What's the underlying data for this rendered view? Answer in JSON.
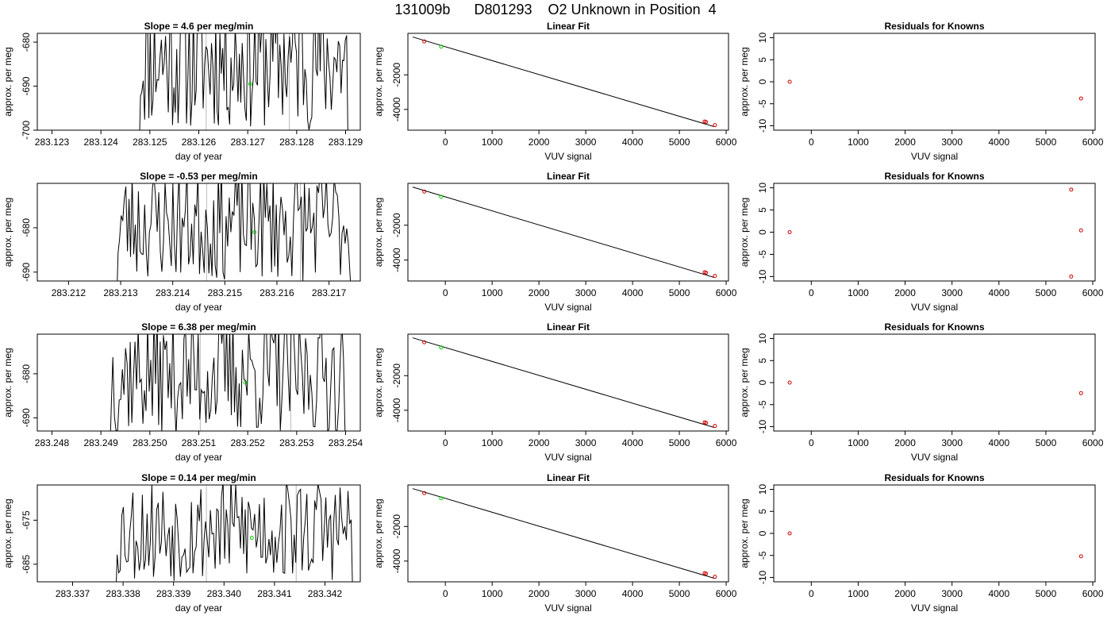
{
  "figure": {
    "title": "131009b      D801293    O2 Unknown in Position  4"
  },
  "styles": {
    "trace_color": "#000000",
    "marker_green": "#00cc00",
    "marker_red": "#cc0000",
    "divider_color": "#bbbbbb"
  },
  "chart_data": [
    {
      "type": "line",
      "row": 1,
      "col": 1,
      "title": "Slope =  4.6  per meg/min",
      "xlabel": "day of year",
      "ylabel": "approx. per meg",
      "xlim": [
        283.1227,
        283.1293
      ],
      "ylim": [
        -700,
        -678
      ],
      "xticks": [
        283.123,
        283.124,
        283.125,
        283.126,
        283.127,
        283.128,
        283.129
      ],
      "xtick_labels": [
        "283.123",
        "283.124",
        "283.125",
        "283.126",
        "283.127",
        "283.128",
        "283.129"
      ],
      "yticks": [
        -680,
        -690,
        -700
      ],
      "ytick_labels": [
        "-680",
        "-690",
        "-700"
      ],
      "trace": {
        "x_start": 283.12478,
        "x_end": 283.12905,
        "seed": 11,
        "center": -684,
        "amplitude": 16
      },
      "dividers": [
        283.12615,
        283.12785
      ],
      "marker": {
        "x": 283.12705,
        "y": -689.5
      }
    },
    {
      "type": "scatter",
      "row": 1,
      "col": 2,
      "title": "Linear Fit",
      "xlabel": "VUV signal",
      "ylabel": "approx. per meg",
      "xlim": [
        -800,
        6050
      ],
      "ylim": [
        -5200,
        400
      ],
      "xticks": [
        0,
        1000,
        2000,
        3000,
        4000,
        5000,
        6000
      ],
      "xtick_labels": [
        "0",
        "1000",
        "2000",
        "3000",
        "4000",
        "5000",
        "6000"
      ],
      "yticks": [
        -2000,
        -4000
      ],
      "ytick_labels": [
        "-2000",
        "-4000"
      ],
      "fit_line": {
        "x": [
          -700,
          5750
        ],
        "y": [
          190,
          -5000
        ]
      },
      "known_points": [
        {
          "x": -450,
          "y": -70
        },
        {
          "x": 5540,
          "y": -4700
        },
        {
          "x": 5570,
          "y": -4730
        },
        {
          "x": 5760,
          "y": -4910
        }
      ],
      "unknown_points": [
        {
          "x": -90,
          "y": -370
        }
      ]
    },
    {
      "type": "scatter",
      "row": 1,
      "col": 3,
      "title": "Residuals for Knowns",
      "xlabel": "VUV signal",
      "ylabel": "approx. per meg",
      "xlim": [
        -800,
        6050
      ],
      "ylim": [
        -11,
        11
      ],
      "xticks": [
        0,
        1000,
        2000,
        3000,
        4000,
        5000,
        6000
      ],
      "xtick_labels": [
        "0",
        "1000",
        "2000",
        "3000",
        "4000",
        "5000",
        "6000"
      ],
      "yticks": [
        10,
        5,
        0,
        -5,
        -10
      ],
      "ytick_labels": [
        "10",
        "5",
        "0",
        "-5",
        "-10"
      ],
      "points": [
        {
          "x": -460,
          "y": 0
        },
        {
          "x": 5750,
          "y": -3.8
        }
      ]
    },
    {
      "type": "line",
      "row": 2,
      "col": 1,
      "title": "Slope =  -0.53  per meg/min",
      "xlabel": "day of year",
      "ylabel": "approx. per meg",
      "xlim": [
        283.2114,
        283.2176
      ],
      "ylim": [
        -692,
        -670
      ],
      "xticks": [
        283.212,
        283.213,
        283.214,
        283.215,
        283.216,
        283.217
      ],
      "xtick_labels": [
        "283.212",
        "283.213",
        "283.214",
        "283.215",
        "283.216",
        "283.217"
      ],
      "yticks": [
        -680,
        -690
      ],
      "ytick_labels": [
        "-680",
        "-690"
      ],
      "trace": {
        "x_start": 283.21292,
        "x_end": 283.21743,
        "seed": 23,
        "center": -679,
        "amplitude": 13
      },
      "dividers": [
        283.21465,
        283.21645
      ],
      "marker": {
        "x": 283.21557,
        "y": -681
      }
    },
    {
      "type": "scatter",
      "row": 2,
      "col": 2,
      "title": "Linear Fit",
      "xlabel": "VUV signal",
      "ylabel": "approx. per meg",
      "xlim": [
        -800,
        6050
      ],
      "ylim": [
        -5200,
        400
      ],
      "xticks": [
        0,
        1000,
        2000,
        3000,
        4000,
        5000,
        6000
      ],
      "xtick_labels": [
        "0",
        "1000",
        "2000",
        "3000",
        "4000",
        "5000",
        "6000"
      ],
      "yticks": [
        -2000,
        -4000
      ],
      "ytick_labels": [
        "-2000",
        "-4000"
      ],
      "fit_line": {
        "x": [
          -700,
          5750
        ],
        "y": [
          190,
          -5000
        ]
      },
      "known_points": [
        {
          "x": -450,
          "y": -70
        },
        {
          "x": 5540,
          "y": -4700
        },
        {
          "x": 5570,
          "y": -4730
        },
        {
          "x": 5760,
          "y": -4910
        }
      ],
      "unknown_points": [
        {
          "x": -90,
          "y": -370
        }
      ]
    },
    {
      "type": "scatter",
      "row": 2,
      "col": 3,
      "title": "Residuals for Knowns",
      "xlabel": "VUV signal",
      "ylabel": "approx. per meg",
      "xlim": [
        -800,
        6050
      ],
      "ylim": [
        -11,
        11
      ],
      "xticks": [
        0,
        1000,
        2000,
        3000,
        4000,
        5000,
        6000
      ],
      "xtick_labels": [
        "0",
        "1000",
        "2000",
        "3000",
        "4000",
        "5000",
        "6000"
      ],
      "yticks": [
        10,
        5,
        0,
        -5,
        -10
      ],
      "ytick_labels": [
        "10",
        "5",
        "0",
        "-5",
        "-10"
      ],
      "points": [
        {
          "x": -460,
          "y": 0
        },
        {
          "x": 5540,
          "y": 9.6
        },
        {
          "x": 5540,
          "y": -10
        },
        {
          "x": 5750,
          "y": 0.4
        }
      ]
    },
    {
      "type": "line",
      "row": 3,
      "col": 1,
      "title": "Slope =  6.38  per meg/min",
      "xlabel": "day of year",
      "ylabel": "approx. per meg",
      "xlim": [
        283.2477,
        283.2543
      ],
      "ylim": [
        -693,
        -671
      ],
      "xticks": [
        283.248,
        283.249,
        283.25,
        283.251,
        283.252,
        283.253,
        283.254
      ],
      "xtick_labels": [
        "283.248",
        "283.249",
        "283.250",
        "283.251",
        "283.252",
        "283.253",
        "283.254"
      ],
      "yticks": [
        -680,
        -690
      ],
      "ytick_labels": [
        "-680",
        "-690"
      ],
      "trace": {
        "x_start": 283.24918,
        "x_end": 283.25402,
        "seed": 37,
        "center": -680,
        "amplitude": 14
      },
      "dividers": [
        283.25103,
        283.25288
      ],
      "marker": {
        "x": 283.25195,
        "y": -682
      }
    },
    {
      "type": "scatter",
      "row": 3,
      "col": 2,
      "title": "Linear Fit",
      "xlabel": "VUV signal",
      "ylabel": "approx. per meg",
      "xlim": [
        -800,
        6050
      ],
      "ylim": [
        -5200,
        400
      ],
      "xticks": [
        0,
        1000,
        2000,
        3000,
        4000,
        5000,
        6000
      ],
      "xtick_labels": [
        "0",
        "1000",
        "2000",
        "3000",
        "4000",
        "5000",
        "6000"
      ],
      "yticks": [
        -2000,
        -4000
      ],
      "ytick_labels": [
        "-2000",
        "-4000"
      ],
      "fit_line": {
        "x": [
          -700,
          5750
        ],
        "y": [
          190,
          -5000
        ]
      },
      "known_points": [
        {
          "x": -450,
          "y": -70
        },
        {
          "x": 5540,
          "y": -4700
        },
        {
          "x": 5570,
          "y": -4730
        },
        {
          "x": 5760,
          "y": -4910
        }
      ],
      "unknown_points": [
        {
          "x": -90,
          "y": -370
        }
      ]
    },
    {
      "type": "scatter",
      "row": 3,
      "col": 3,
      "title": "Residuals for Knowns",
      "xlabel": "VUV signal",
      "ylabel": "approx. per meg",
      "xlim": [
        -800,
        6050
      ],
      "ylim": [
        -11,
        11
      ],
      "xticks": [
        0,
        1000,
        2000,
        3000,
        4000,
        5000,
        6000
      ],
      "xtick_labels": [
        "0",
        "1000",
        "2000",
        "3000",
        "4000",
        "5000",
        "6000"
      ],
      "yticks": [
        10,
        5,
        0,
        -5,
        -10
      ],
      "ytick_labels": [
        "10",
        "5",
        "0",
        "-5",
        "-10"
      ],
      "points": [
        {
          "x": -460,
          "y": 0
        },
        {
          "x": 5750,
          "y": -2.4
        }
      ]
    },
    {
      "type": "line",
      "row": 4,
      "col": 1,
      "title": "Slope =  0.14  per meg/min",
      "xlabel": "day of year",
      "ylabel": "approx. per meg",
      "xlim": [
        283.3363,
        283.3427
      ],
      "ylim": [
        -689,
        -667
      ],
      "xticks": [
        283.337,
        283.338,
        283.339,
        283.34,
        283.341,
        283.342
      ],
      "xtick_labels": [
        "283.337",
        "283.338",
        "283.339",
        "283.340",
        "283.341",
        "283.342"
      ],
      "yticks": [
        -675,
        -685
      ],
      "ytick_labels": [
        "-675",
        "-685"
      ],
      "trace": {
        "x_start": 283.33785,
        "x_end": 283.34255,
        "seed": 53,
        "center": -677,
        "amplitude": 12
      },
      "dividers": [
        283.33965,
        283.34143
      ],
      "marker": {
        "x": 283.34055,
        "y": -679
      }
    },
    {
      "type": "scatter",
      "row": 4,
      "col": 2,
      "title": "Linear Fit",
      "xlabel": "VUV signal",
      "ylabel": "approx. per meg",
      "xlim": [
        -800,
        6050
      ],
      "ylim": [
        -5200,
        400
      ],
      "xticks": [
        0,
        1000,
        2000,
        3000,
        4000,
        5000,
        6000
      ],
      "xtick_labels": [
        "0",
        "1000",
        "2000",
        "3000",
        "4000",
        "5000",
        "6000"
      ],
      "yticks": [
        -2000,
        -4000
      ],
      "ytick_labels": [
        "-2000",
        "-4000"
      ],
      "fit_line": {
        "x": [
          -700,
          5750
        ],
        "y": [
          190,
          -5000
        ]
      },
      "known_points": [
        {
          "x": -450,
          "y": -70
        },
        {
          "x": 5540,
          "y": -4700
        },
        {
          "x": 5570,
          "y": -4730
        },
        {
          "x": 5760,
          "y": -4910
        }
      ],
      "unknown_points": [
        {
          "x": -90,
          "y": -370
        }
      ]
    },
    {
      "type": "scatter",
      "row": 4,
      "col": 3,
      "title": "Residuals for Knowns",
      "xlabel": "VUV signal",
      "ylabel": "approx. per meg",
      "xlim": [
        -800,
        6050
      ],
      "ylim": [
        -11,
        11
      ],
      "xticks": [
        0,
        1000,
        2000,
        3000,
        4000,
        5000,
        6000
      ],
      "xtick_labels": [
        "0",
        "1000",
        "2000",
        "3000",
        "4000",
        "5000",
        "6000"
      ],
      "yticks": [
        10,
        5,
        0,
        -5,
        -10
      ],
      "ytick_labels": [
        "10",
        "5",
        "0",
        "-5",
        "-10"
      ],
      "points": [
        {
          "x": -460,
          "y": 0
        },
        {
          "x": 5750,
          "y": -5.2
        }
      ]
    }
  ]
}
